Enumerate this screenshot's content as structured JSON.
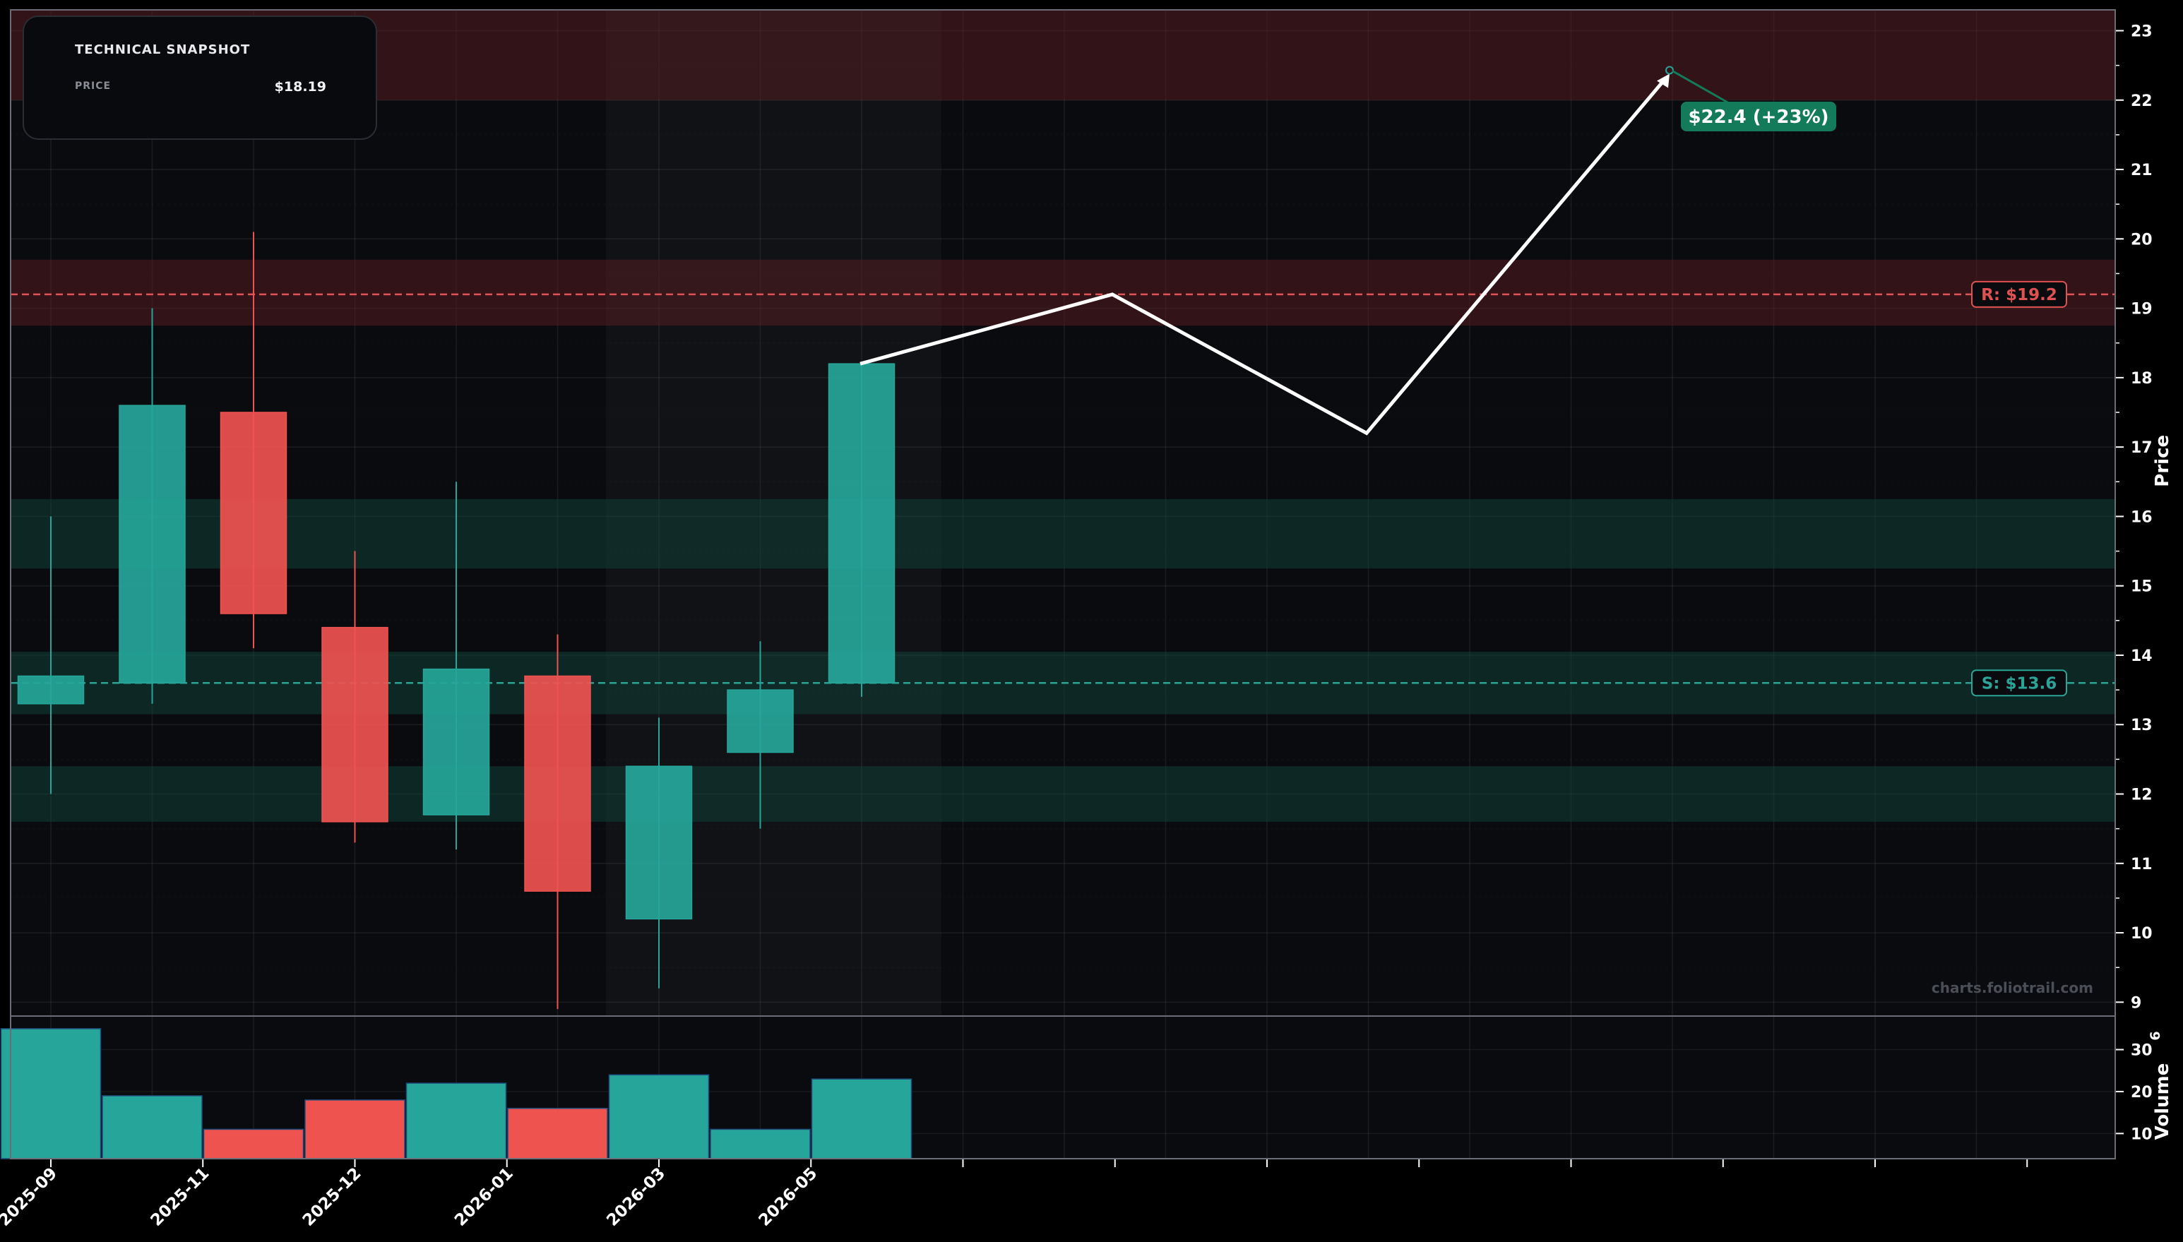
{
  "snapshot": {
    "title": "TECHNICAL SNAPSHOT",
    "price_label": "PRICE",
    "price_value": "$18.19"
  },
  "chart_data": {
    "type": "candlestick",
    "x_tick_labels": [
      "2025-09",
      "2025-11",
      "2025-12",
      "2026-01",
      "2026-03",
      "2026-05"
    ],
    "candles": [
      {
        "open": 13.3,
        "high": 16.0,
        "low": 12.0,
        "close": 13.7
      },
      {
        "open": 13.6,
        "high": 19.0,
        "low": 13.3,
        "close": 17.6
      },
      {
        "open": 17.5,
        "high": 20.1,
        "low": 14.1,
        "close": 14.6
      },
      {
        "open": 14.4,
        "high": 15.5,
        "low": 11.3,
        "close": 11.6
      },
      {
        "open": 11.7,
        "high": 16.5,
        "low": 11.2,
        "close": 13.8
      },
      {
        "open": 13.7,
        "high": 14.3,
        "low": 8.9,
        "close": 10.6
      },
      {
        "open": 10.2,
        "high": 13.1,
        "low": 9.2,
        "close": 12.4
      },
      {
        "open": 12.6,
        "high": 14.2,
        "low": 11.5,
        "close": 13.5
      },
      {
        "open": 13.6,
        "high": 18.2,
        "low": 13.4,
        "close": 18.2
      }
    ],
    "volume": [
      {
        "value": 35,
        "direction": "up"
      },
      {
        "value": 19,
        "direction": "up"
      },
      {
        "value": 11,
        "direction": "down"
      },
      {
        "value": 18,
        "direction": "down"
      },
      {
        "value": 22,
        "direction": "up"
      },
      {
        "value": 16,
        "direction": "down"
      },
      {
        "value": 24,
        "direction": "up"
      },
      {
        "value": 11,
        "direction": "up"
      },
      {
        "value": 23,
        "direction": "up"
      }
    ],
    "projection": [
      18.2,
      19.2,
      17.2,
      22.4
    ],
    "price_axis": {
      "label": "Price",
      "ylim": [
        8.8,
        23.3
      ],
      "ticks": [
        9,
        10,
        11,
        12,
        13,
        14,
        15,
        16,
        17,
        18,
        19,
        20,
        21,
        22,
        23
      ]
    },
    "volume_axis": {
      "label": "Volume",
      "exponent_label": "6",
      "ylim": [
        4,
        38
      ],
      "ticks": [
        10,
        20,
        30
      ]
    },
    "resistance": {
      "label": "R: $19.2",
      "value": 19.2
    },
    "support": {
      "label": "S: $13.6",
      "value": 13.6
    },
    "target": {
      "label": "$22.4 (+23%)",
      "value": 22.4
    },
    "zones": [
      {
        "from": 22.0,
        "to": 23.3,
        "kind": "resistance"
      },
      {
        "from": 18.75,
        "to": 19.7,
        "kind": "resistance"
      },
      {
        "from": 15.25,
        "to": 16.25,
        "kind": "support"
      },
      {
        "from": 13.15,
        "to": 14.05,
        "kind": "support"
      },
      {
        "from": 11.6,
        "to": 12.4,
        "kind": "support"
      }
    ],
    "watermark": "charts.foliotrail.com",
    "colors": {
      "up": "#26a69a",
      "down": "#ef5350",
      "resistance": "#e05252",
      "support": "#2ba397",
      "target_badge": "#137a5a",
      "projection": "#ffffff",
      "background": "#0a0b0f"
    }
  }
}
